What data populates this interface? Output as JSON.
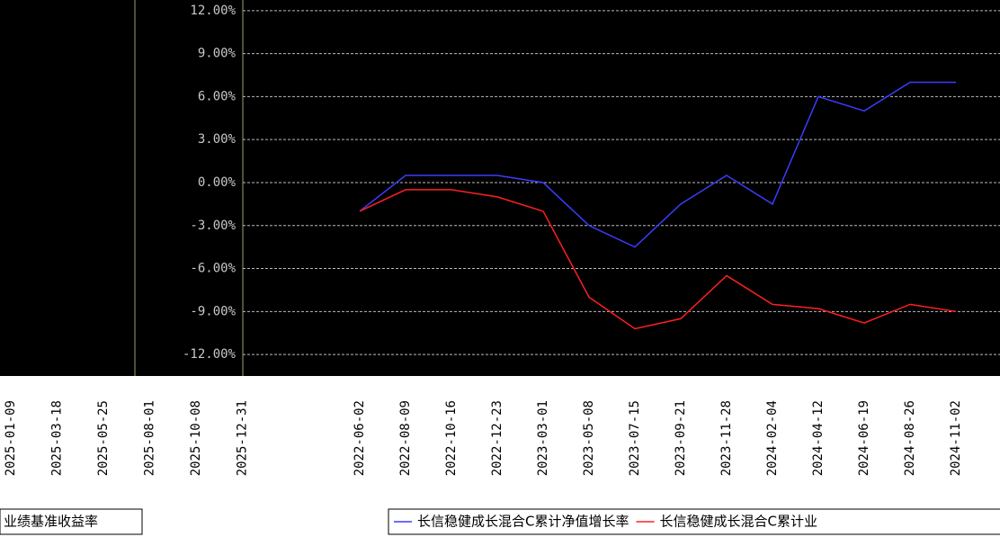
{
  "chart_data": [
    {
      "type": "line",
      "categories": [
        "2025-01-09",
        "2025-03-18",
        "2025-05-25",
        "2025-08-01",
        "2025-10-08",
        "2025-12-31"
      ],
      "legend": "业绩基准收益率"
    },
    {
      "type": "line",
      "categories": [
        "2022-06-02",
        "2022-08-09",
        "2022-10-16",
        "2022-12-23",
        "2023-03-01",
        "2023-05-08",
        "2023-07-15",
        "2023-09-21",
        "2023-11-28",
        "2024-02-04",
        "2024-04-12",
        "2024-06-19",
        "2024-08-26",
        "2024-11-02"
      ],
      "ylim": [
        -13.5,
        14.5
      ],
      "yticks": [
        {
          "value": 12,
          "label": "12.00%"
        },
        {
          "value": 9,
          "label": "9.00%"
        },
        {
          "value": 6,
          "label": "6.00%"
        },
        {
          "value": 3,
          "label": "3.00%"
        },
        {
          "value": 0,
          "label": "0.00%"
        },
        {
          "value": -3,
          "label": "-3.00%"
        },
        {
          "value": -6,
          "label": "-6.00%"
        },
        {
          "value": -9,
          "label": "-9.00%"
        },
        {
          "value": -12,
          "label": "-12.00%"
        }
      ],
      "grid": true,
      "series": [
        {
          "name": "长信稳健成长混合C累计净值增长率",
          "color": "#3c3cff",
          "values": [
            -2,
            0.5,
            0.5,
            0.5,
            0,
            -3,
            -4.5,
            -1.5,
            0.5,
            -1.5,
            6,
            5,
            7,
            7
          ]
        },
        {
          "name": "长信稳健成长混合C累计业",
          "color": "#ff2020",
          "values": [
            -2,
            -0.5,
            -0.5,
            -1,
            -2,
            -8,
            -10.2,
            -9.5,
            -6.5,
            -8.5,
            -8.8,
            -9.8,
            -8.5,
            -9
          ]
        }
      ]
    }
  ]
}
